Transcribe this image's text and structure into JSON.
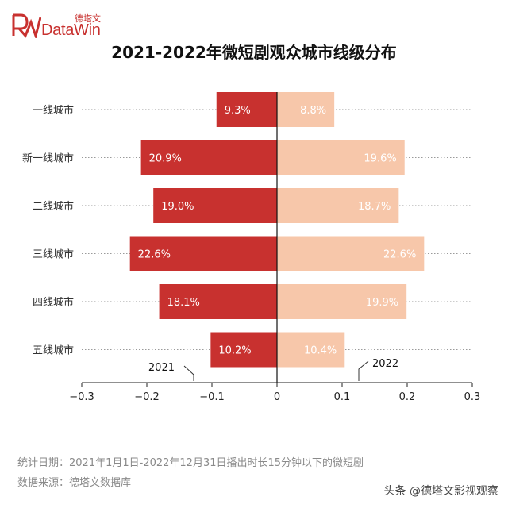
{
  "logo": {
    "brand": "DataWin",
    "brand_cn": "德塔文",
    "mark": "logo-mark"
  },
  "title": "2021-2022年微短剧观众城市线级分布",
  "chart_data": {
    "type": "bar",
    "orientation": "horizontal-diverging",
    "title": "2021-2022年微短剧观众城市线级分布",
    "categories": [
      "一线城市",
      "新一线城市",
      "二线城市",
      "三线城市",
      "四线城市",
      "五线城市"
    ],
    "series": [
      {
        "name": "2021",
        "values": [
          -0.093,
          -0.209,
          -0.19,
          -0.226,
          -0.181,
          -0.102
        ],
        "labels": [
          "9.3%",
          "20.9%",
          "19.0%",
          "22.6%",
          "18.1%",
          "10.2%"
        ],
        "color": "#c8312f",
        "label_color": "#ffffff"
      },
      {
        "name": "2022",
        "values": [
          0.088,
          0.196,
          0.187,
          0.226,
          0.199,
          0.104
        ],
        "labels": [
          "8.8%",
          "19.6%",
          "18.7%",
          "22.6%",
          "19.9%",
          "10.4%"
        ],
        "color": "#f7c7aa",
        "label_color": "#ffffff"
      }
    ],
    "xlim": [
      -0.3,
      0.3
    ],
    "xticks": [
      -0.3,
      -0.2,
      -0.1,
      0,
      0.1,
      0.2,
      0.3
    ],
    "xtick_labels": [
      "−0.3",
      "−0.2",
      "−0.1",
      "0",
      "0.1",
      "0.2",
      "0.3"
    ],
    "grid": "horizontal dotted",
    "legend": "inline callouts"
  },
  "footnotes": {
    "period": "统计日期：2021年1月1日-2022年12月31日播出时长15分钟以下的微短剧",
    "source": "数据来源：德塔文数据库"
  },
  "watermark": "头条 @德塔文影视观察",
  "colors": {
    "accent": "#c8312f",
    "accent_light": "#f7c7aa"
  }
}
